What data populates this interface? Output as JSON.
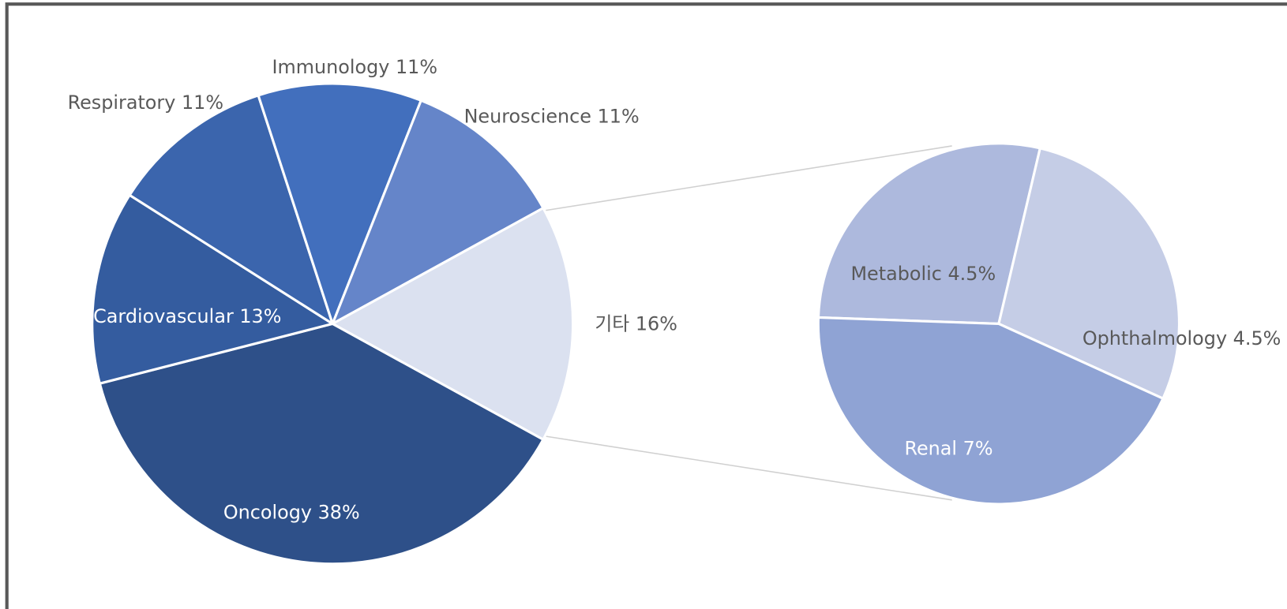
{
  "chart_data": [
    {
      "type": "pie",
      "categories": [
        "Oncology",
        "Cardiovascular",
        "Respiratory",
        "Immunology",
        "Neuroscience",
        "기타"
      ],
      "values": [
        38,
        13,
        11,
        11,
        11,
        16
      ],
      "value_labels": [
        "38%",
        "13%",
        "11%",
        "11%",
        "11%",
        "16%"
      ],
      "colors": [
        "#2e5089",
        "#345c9f",
        "#3b65ad",
        "#426fbd",
        "#6585c9",
        "#dbe1f0"
      ]
    },
    {
      "type": "pie",
      "categories": [
        "Metabolic",
        "Ophthalmology",
        "Renal"
      ],
      "values": [
        4.5,
        4.5,
        7
      ],
      "value_labels": [
        "4.5%",
        "4.5%",
        "7%"
      ],
      "colors": [
        "#adb9dd",
        "#c5cde6",
        "#8fa3d4"
      ]
    }
  ]
}
